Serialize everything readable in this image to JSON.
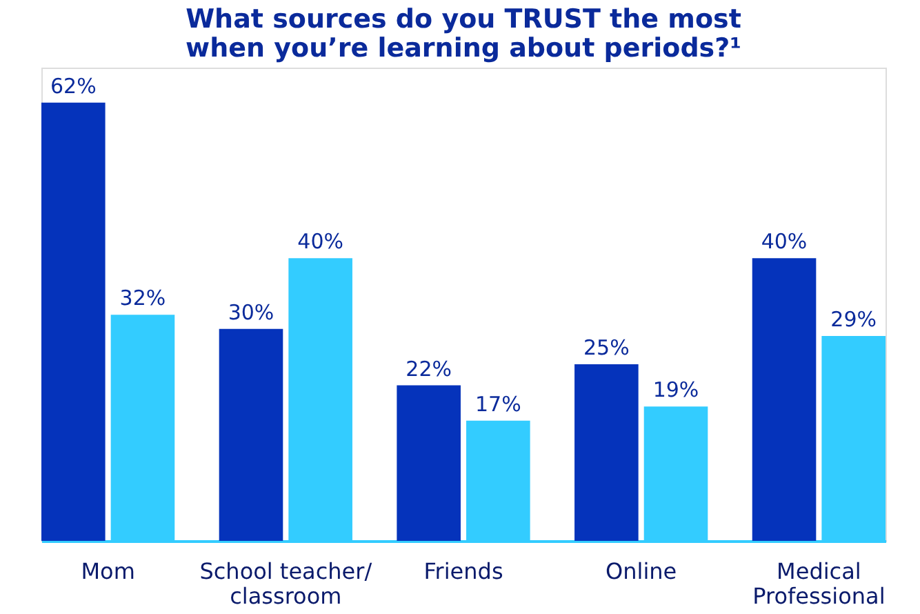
{
  "chart_data": {
    "type": "bar",
    "title": "What sources do you TRUST the most\nwhen you’re learning about periods?¹",
    "categories": [
      "Mom",
      "School teacher/\nclassroom",
      "Friends",
      "Online",
      "Medical\nProfessional"
    ],
    "series": [
      {
        "color": "#0533bb",
        "values": [
          62,
          30,
          22,
          25,
          40
        ],
        "value_labels": [
          "62%",
          "30%",
          "22%",
          "25%",
          "40%"
        ]
      },
      {
        "color": "#33ccff",
        "values": [
          32,
          40,
          17,
          19,
          29
        ],
        "value_labels": [
          "32%",
          "40%",
          "17%",
          "19%",
          "29%"
        ]
      }
    ],
    "grid": false,
    "legend": false
  }
}
